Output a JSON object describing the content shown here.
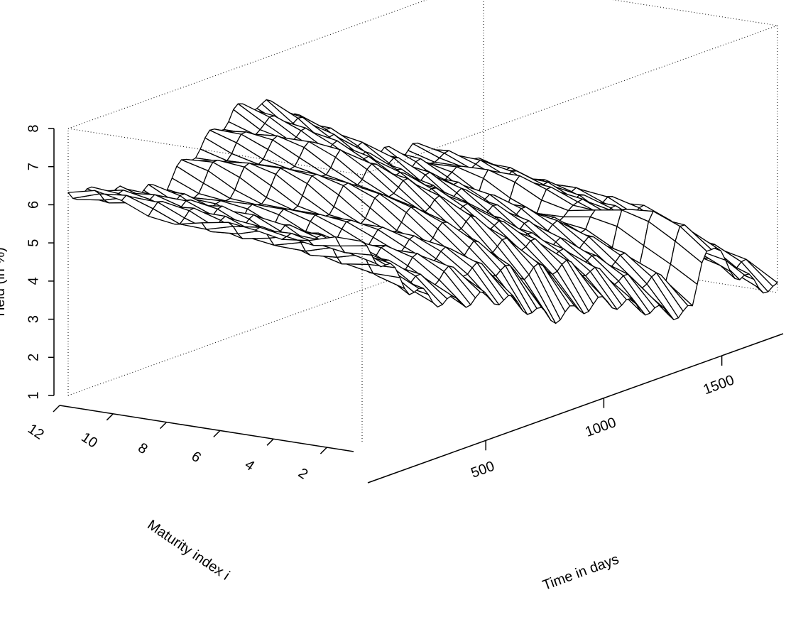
{
  "chart_data": {
    "type": "surface",
    "xlabel": "Time in days",
    "ylabel": "Maturity index i",
    "zlabel": "Yield (in %)",
    "x_ticks": [
      500,
      1000,
      1500
    ],
    "y_ticks": [
      2,
      4,
      6,
      8,
      10,
      12
    ],
    "z_ticks": [
      1,
      2,
      3,
      4,
      5,
      6,
      7,
      8
    ],
    "xlim": [
      0,
      1760
    ],
    "ylim": [
      1,
      12
    ],
    "zlim": [
      1,
      8
    ],
    "grid": false,
    "box": "dotted",
    "surface_color": "#ffffff",
    "mesh_color": "#000000",
    "approx_yield_profile": {
      "time": [
        0,
        200,
        400,
        600,
        700,
        800,
        1000,
        1200,
        1400,
        1450,
        1600,
        1760
      ],
      "maturity_1": [
        6.0,
        4.6,
        3.8,
        3.3,
        3.0,
        2.6,
        2.3,
        1.9,
        1.3,
        2.9,
        1.7,
        1.2
      ],
      "maturity_12": [
        6.2,
        6.0,
        5.4,
        6.5,
        7.0,
        6.9,
        5.8,
        4.8,
        4.1,
        4.2,
        3.6,
        3.2
      ]
    }
  }
}
